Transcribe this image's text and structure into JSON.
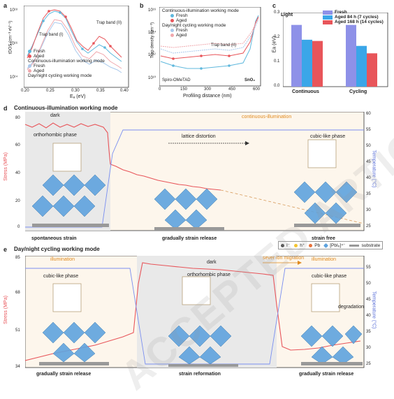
{
  "panel_a": {
    "letter": "a",
    "ylabel": "tDOS (cm⁻³ eV⁻¹)",
    "xlabel": "Eₐ (eV)",
    "band1": "Trap band (I)",
    "band2": "Trap band (II)",
    "yticks": [
      "10¹⁸",
      "10¹⁶",
      "10¹⁴"
    ],
    "xticks": [
      "0.20",
      "0.25",
      "0.30",
      "0.35",
      "0.40"
    ],
    "legend_mode1": "Continuous-illumination working mode",
    "legend_mode2": "Day/night cycling working mode",
    "legend_fresh": "Fresh",
    "legend_aged": "Aged"
  },
  "panel_b": {
    "letter": "b",
    "ylabel": "Trap density (cm⁻³)",
    "xlabel": "Profiling distance (nm)",
    "mode1": "Continuous-illumination working mode",
    "mode2": "Day/night cycling working mode",
    "legend_fresh": "Fresh",
    "legend_aged": "Aged",
    "band": "Trap band (II)",
    "left_label": "Spiro-OMeTAD",
    "right_label": "SnO₂",
    "yticks": [
      "10¹⁶",
      "10¹⁴",
      "10¹²",
      "10¹⁰"
    ],
    "xticks": [
      "0",
      "150",
      "300",
      "450",
      "600"
    ]
  },
  "panel_c": {
    "letter": "c",
    "light": "Light",
    "ylabel": "Ea (eV)",
    "yticks": [
      "0.0",
      "0.1",
      "0.2",
      "0.3"
    ],
    "colors": {
      "fresh": "#8e91e8",
      "aged84": "#3aa6e8",
      "aged168": "#e8555a"
    },
    "chart_data": {
      "type": "bar",
      "categories": [
        "Continuous",
        "Cycling"
      ],
      "series": [
        {
          "name": "Fresh",
          "values": [
            0.25,
            0.25
          ]
        },
        {
          "name": "Aged 84 h (7 cycles)",
          "values": [
            0.19,
            0.165
          ]
        },
        {
          "name": "Aged 168 h (14 cycles)",
          "values": [
            0.185,
            0.135
          ]
        }
      ],
      "ylabel": "Ea (eV)",
      "ylim": [
        0,
        0.3
      ]
    }
  },
  "panel_d": {
    "letter": "d",
    "title": "Continuous-illumination working mode",
    "dark": "dark",
    "illum": "continuous-illumination",
    "ylabel_left": "Stress (MPa)",
    "ylabel_right": "Temperature (°C)",
    "yticks_left": [
      "80",
      "60",
      "40",
      "20",
      "0"
    ],
    "yticks_right": [
      "60",
      "55",
      "50",
      "45",
      "40",
      "35",
      "30",
      "25"
    ],
    "phase1": "orthorhombic phase",
    "phase2": "cubic-like phase",
    "lattice": "lattice distortion",
    "cap1": "spontaneous strain",
    "cap2": "gradually strain release",
    "cap3": "strain free"
  },
  "panel_e": {
    "letter": "e",
    "title": "Day/night cycling working mode",
    "legend": {
      "iodide": "I⁻",
      "hole": "h⁺",
      "pb": "Pb",
      "pbi6": "[PbI₆]⁴⁻",
      "substrate": "substrate"
    },
    "illum1": "illumination",
    "dark": "dark",
    "ion": "sever ion migration",
    "illum2": "illumination",
    "ylabel_left": "Stress (MPa)",
    "ylabel_right": "Temperature (°C)",
    "yticks_left": [
      "85",
      "68",
      "51",
      "34"
    ],
    "yticks_right": [
      "55",
      "50",
      "45",
      "40",
      "35",
      "30",
      "25"
    ],
    "phase1": "cubic-like phase",
    "phase2": "orthorhombic phase",
    "phase3": "cubic-like phase",
    "degradation": "degradation",
    "cap1": "gradually strain release",
    "cap2": "strain reformation",
    "cap3": "gradually strain release"
  },
  "watermark": "ACCEPTED ARTICLE PREVIEW"
}
